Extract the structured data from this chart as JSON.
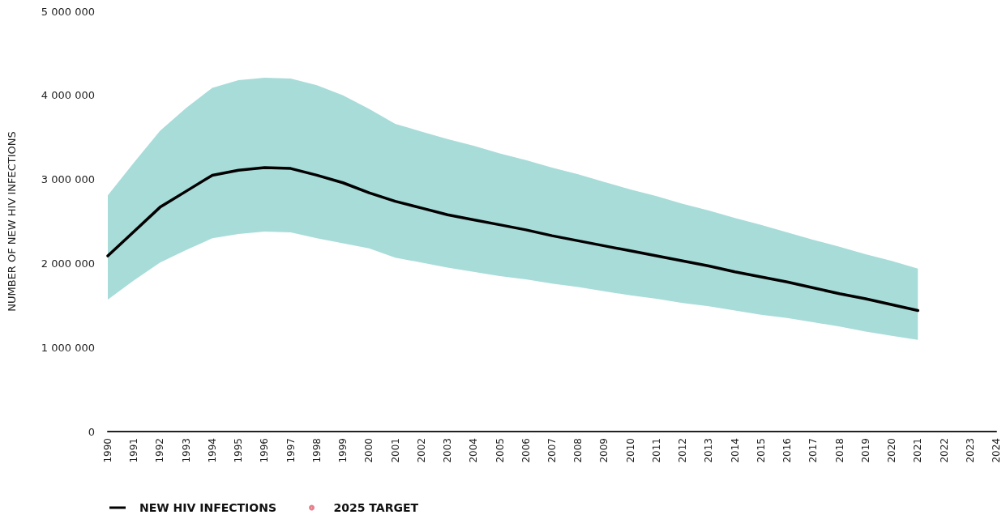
{
  "chart_data": {
    "type": "line",
    "ylabel": "NUMBER OF NEW HIV INFECTIONS",
    "categories": [
      "1990",
      "1991",
      "1992",
      "1993",
      "1994",
      "1995",
      "1996",
      "1997",
      "1998",
      "1999",
      "2000",
      "2001",
      "2002",
      "2003",
      "2004",
      "2005",
      "2006",
      "2007",
      "2008",
      "2009",
      "2010",
      "2011",
      "2012",
      "2013",
      "2014",
      "2015",
      "2016",
      "2017",
      "2018",
      "2019",
      "2020",
      "2021",
      "2022",
      "2023",
      "2024"
    ],
    "series": [
      {
        "name": "NEW HIV INFECTIONS",
        "color": "#000000",
        "values": [
          2090000,
          2380000,
          2670000,
          2860000,
          3050000,
          3110000,
          3140000,
          3130000,
          3050000,
          2960000,
          2840000,
          2740000,
          2660000,
          2580000,
          2520000,
          2460000,
          2400000,
          2330000,
          2270000,
          2210000,
          2150000,
          2090000,
          2030000,
          1970000,
          1900000,
          1840000,
          1780000,
          1710000,
          1640000,
          1580000,
          1510000,
          1440000,
          null,
          null,
          null
        ],
        "lower": [
          1570000,
          1800000,
          2010000,
          2160000,
          2300000,
          2350000,
          2380000,
          2370000,
          2300000,
          2240000,
          2180000,
          2070000,
          2010000,
          1950000,
          1900000,
          1850000,
          1810000,
          1760000,
          1720000,
          1670000,
          1620000,
          1580000,
          1530000,
          1490000,
          1440000,
          1390000,
          1350000,
          1300000,
          1250000,
          1190000,
          1140000,
          1090000,
          null,
          null,
          null
        ],
        "upper": [
          2810000,
          3200000,
          3580000,
          3850000,
          4090000,
          4180000,
          4210000,
          4200000,
          4120000,
          4000000,
          3840000,
          3660000,
          3570000,
          3480000,
          3400000,
          3310000,
          3230000,
          3140000,
          3060000,
          2970000,
          2880000,
          2800000,
          2710000,
          2630000,
          2540000,
          2460000,
          2370000,
          2280000,
          2200000,
          2110000,
          2030000,
          1940000,
          null,
          null,
          null
        ]
      },
      {
        "name": "2025 TARGET",
        "type": "scatter",
        "color": "#e06070",
        "values": [
          null,
          null,
          null,
          null,
          null,
          null,
          null,
          null,
          null,
          null,
          null,
          null,
          null,
          null,
          null,
          null,
          null,
          null,
          null,
          null,
          null,
          null,
          null,
          null,
          null,
          null,
          null,
          null,
          null,
          null,
          null,
          null,
          null,
          null,
          null
        ]
      }
    ],
    "ylim": [
      0,
      5000000
    ],
    "yticks": [
      {
        "value": 0,
        "label": "0"
      },
      {
        "value": 1000000,
        "label": "1 000 000"
      },
      {
        "value": 2000000,
        "label": "2 000 000"
      },
      {
        "value": 3000000,
        "label": "3 000 000"
      },
      {
        "value": 4000000,
        "label": "4 000 000"
      },
      {
        "value": 5000000,
        "label": "5 000 000"
      }
    ],
    "grid": false,
    "legend": "bottom left"
  }
}
